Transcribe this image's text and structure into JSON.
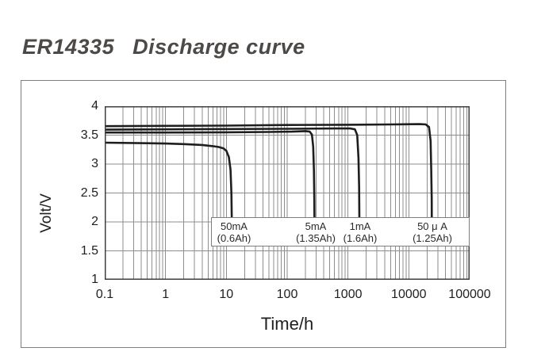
{
  "page": {
    "title_model": "ER14335",
    "title_text": "Discharge curve"
  },
  "colors": {
    "background": "#ffffff",
    "title_text": "#4c4947",
    "axis_text": "#1f1f1f",
    "gridline": "#8e8e8e",
    "plot_border": "#3f3f3f",
    "outer_border": "#7e7e7e",
    "curve": "#1e1e1e",
    "annotation_bg": "#ffffff",
    "annotation_border": "#7e7e7e"
  },
  "chart_data": {
    "type": "line",
    "title": "ER14335 Discharge curve",
    "xlabel": "Time/h",
    "ylabel": "Volt/V",
    "x_scale": "log",
    "x_range": [
      0.1,
      100000
    ],
    "y_range": [
      1,
      4
    ],
    "grid": true,
    "legend_position": "none",
    "x_tick_labels": [
      "0.1",
      "1",
      "10",
      "100",
      "1000",
      "10000",
      "100000"
    ],
    "y_tick_labels": [
      "4",
      "3.5",
      "3",
      "2.5",
      "2",
      "1.5",
      "1"
    ],
    "series": [
      {
        "name": "50mA",
        "label_current": "50mA",
        "label_capacity": "(0.6Ah)",
        "points": [
          [
            0.1,
            3.37
          ],
          [
            0.5,
            3.36
          ],
          [
            1,
            3.355
          ],
          [
            2,
            3.345
          ],
          [
            4,
            3.33
          ],
          [
            6,
            3.31
          ],
          [
            7.5,
            3.295
          ],
          [
            9,
            3.27
          ],
          [
            10,
            3.23
          ],
          [
            11,
            3.12
          ],
          [
            11.7,
            2.9
          ],
          [
            12.1,
            2.5
          ],
          [
            12.3,
            2.02
          ]
        ]
      },
      {
        "name": "5mA",
        "label_current": "5mA",
        "label_capacity": "(1.35Ah)",
        "points": [
          [
            0.1,
            3.545
          ],
          [
            1,
            3.545
          ],
          [
            10,
            3.55
          ],
          [
            50,
            3.555
          ],
          [
            120,
            3.56
          ],
          [
            200,
            3.57
          ],
          [
            235,
            3.56
          ],
          [
            255,
            3.51
          ],
          [
            268,
            3.3
          ],
          [
            275,
            2.9
          ],
          [
            279,
            2.4
          ],
          [
            281,
            2.02
          ]
        ]
      },
      {
        "name": "1mA",
        "label_current": "1mA",
        "label_capacity": "(1.6Ah)",
        "points": [
          [
            0.1,
            3.595
          ],
          [
            1,
            3.6
          ],
          [
            10,
            3.605
          ],
          [
            100,
            3.61
          ],
          [
            600,
            3.615
          ],
          [
            1100,
            3.615
          ],
          [
            1300,
            3.6
          ],
          [
            1420,
            3.5
          ],
          [
            1490,
            3.1
          ],
          [
            1525,
            2.6
          ],
          [
            1540,
            2.02
          ]
        ]
      },
      {
        "name": "50uA",
        "label_current": "50 μ A",
        "label_capacity": "(1.25Ah)",
        "points": [
          [
            0.1,
            3.655
          ],
          [
            1,
            3.66
          ],
          [
            10,
            3.665
          ],
          [
            100,
            3.675
          ],
          [
            1000,
            3.68
          ],
          [
            5000,
            3.685
          ],
          [
            15000,
            3.69
          ],
          [
            19000,
            3.685
          ],
          [
            21500,
            3.64
          ],
          [
            22800,
            3.4
          ],
          [
            23400,
            2.9
          ],
          [
            23800,
            2.4
          ],
          [
            23900,
            2.02
          ]
        ]
      }
    ]
  }
}
